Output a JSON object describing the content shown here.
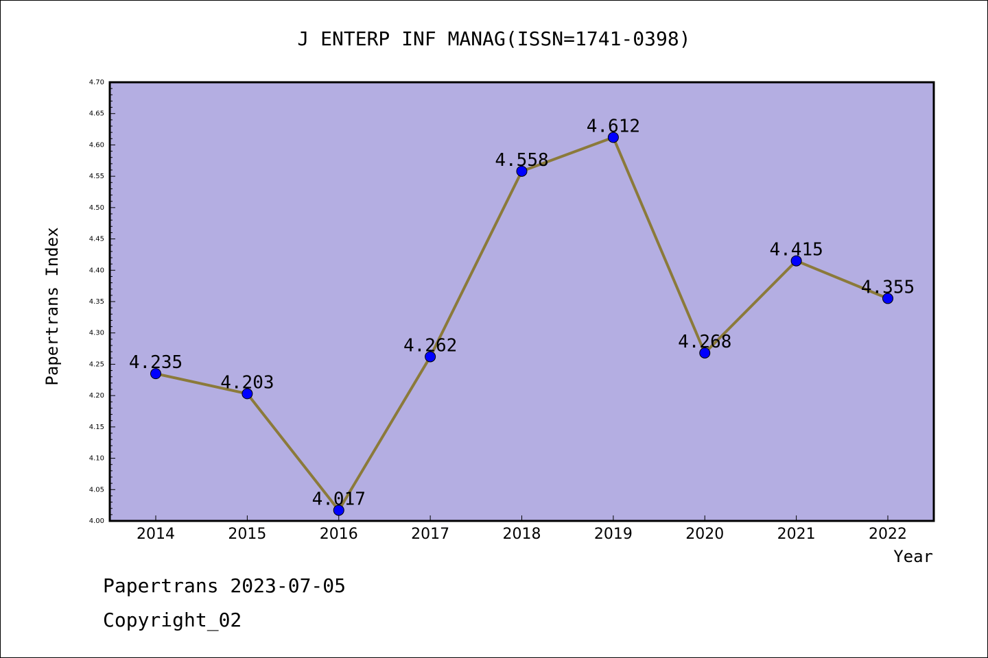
{
  "chart_data": {
    "type": "line",
    "title": "J ENTERP INF MANAG(ISSN=1741-0398)",
    "xlabel": "Year",
    "ylabel": "Papertrans Index",
    "categories": [
      "2014",
      "2015",
      "2016",
      "2017",
      "2018",
      "2019",
      "2020",
      "2021",
      "2022"
    ],
    "series": [
      {
        "values": [
          4.235,
          4.203,
          4.017,
          4.262,
          4.558,
          4.612,
          4.268,
          4.415,
          4.355
        ],
        "labels": [
          "4.235",
          "4.203",
          "4.017",
          "4.262",
          "4.558",
          "4.612",
          "4.268",
          "4.415",
          "4.355"
        ]
      }
    ],
    "ylim": [
      4.0,
      4.7
    ],
    "yticks": [
      "4.00",
      "4.05",
      "4.10",
      "4.15",
      "4.20",
      "4.25",
      "4.30",
      "4.35",
      "4.40",
      "4.45",
      "4.50",
      "4.55",
      "4.60",
      "4.65",
      "4.70"
    ],
    "grid": false,
    "colors": {
      "plot_background": "#b4aee2",
      "line": "#8b7a3a",
      "marker": "#0000ff",
      "axis": "#000000"
    }
  },
  "footer": {
    "line1": "Papertrans 2023-07-05",
    "line2": "Copyright_02"
  }
}
